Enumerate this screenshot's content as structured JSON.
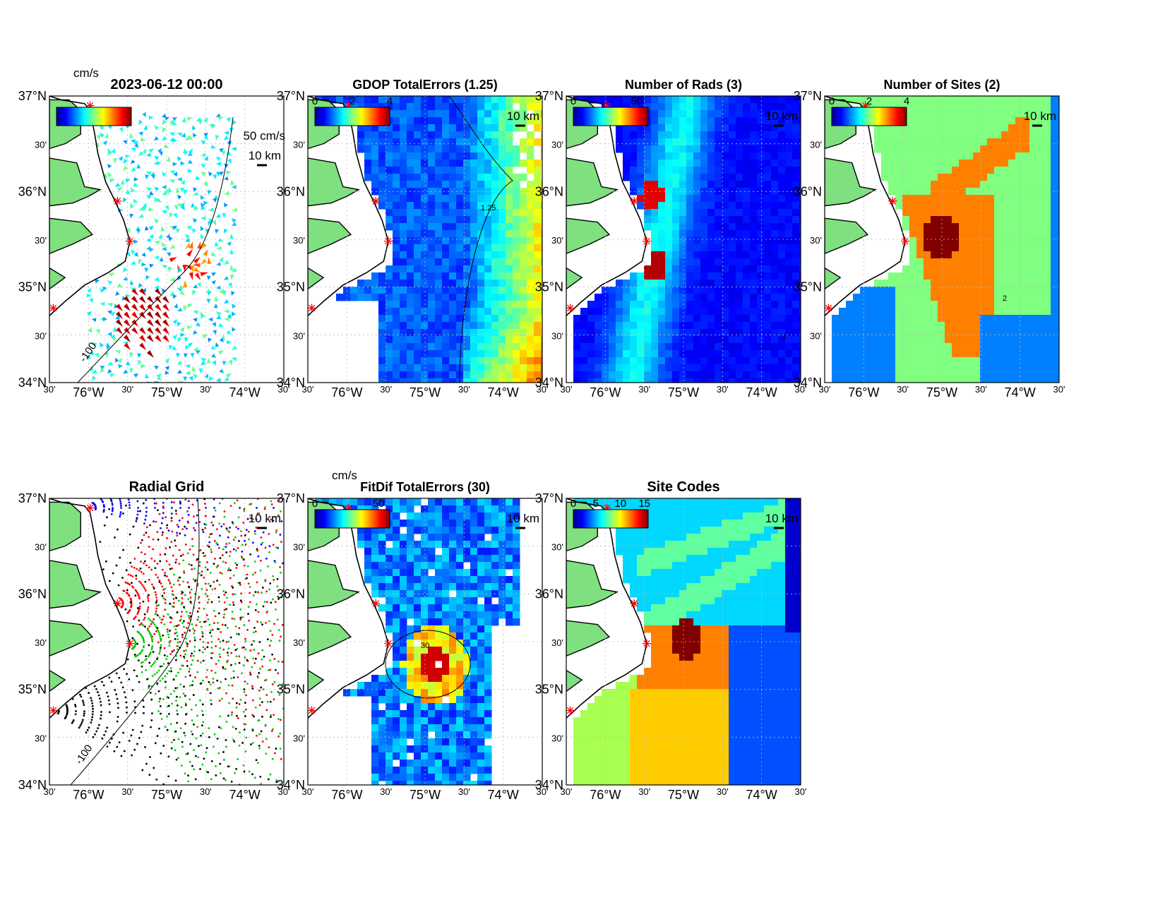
{
  "figure": {
    "axis_labels": {
      "lat_major": [
        "37°N",
        "36°N",
        "35°N",
        "34°N"
      ],
      "lat_minor": "30'",
      "lon_major": [
        "76°W",
        "75°W",
        "74°W"
      ],
      "lon_minor": "30'"
    },
    "scale_bar_label": "10 km",
    "panels": [
      {
        "id": "totals",
        "title": "2023-06-12 00:00",
        "colorbar_unit": "cm/s",
        "colorbar_ticks": [],
        "vector_scale_label": "50 cm/s",
        "contour_label": "-100"
      },
      {
        "id": "gdop",
        "title": "GDOP TotalErrors (1.25)",
        "colorbar_unit": "",
        "colorbar_ticks": [
          "0",
          "2",
          "4"
        ],
        "contour_label": "1.25"
      },
      {
        "id": "rads",
        "title": "Number of Rads (3)",
        "colorbar_unit": "",
        "colorbar_ticks": [
          "0",
          "50"
        ],
        "contour_label": "3"
      },
      {
        "id": "sites",
        "title": "Number of Sites (2)",
        "colorbar_unit": "",
        "colorbar_ticks": [
          "0",
          "2",
          "4"
        ],
        "contour_label": "2"
      },
      {
        "id": "radial",
        "title": "Radial Grid",
        "colorbar_unit": "",
        "colorbar_ticks": [],
        "contour_label": "-100"
      },
      {
        "id": "fitdif",
        "title": "FitDif TotalErrors (30)",
        "colorbar_unit": "cm/s",
        "colorbar_ticks": [
          "0",
          "50"
        ],
        "contour_label": "30"
      },
      {
        "id": "codes",
        "title": "Site Codes",
        "colorbar_unit": "",
        "colorbar_ticks": [
          "0",
          "5",
          "10",
          "15"
        ],
        "contour_label": ""
      }
    ],
    "colors": {
      "land": "#7fe07f",
      "coast": "#000000",
      "site_marker": "#ff0000",
      "jet_low": "#00008f",
      "jet_high": "#800000"
    }
  }
}
